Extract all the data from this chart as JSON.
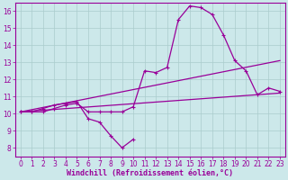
{
  "background_color": "#cce8ea",
  "grid_color": "#aacccc",
  "line_color": "#990099",
  "xlabel": "Windchill (Refroidissement éolien,°C)",
  "xlim": [
    -0.5,
    23.5
  ],
  "ylim": [
    7.5,
    16.5
  ],
  "yticks": [
    8,
    9,
    10,
    11,
    12,
    13,
    14,
    15,
    16
  ],
  "xticks": [
    0,
    1,
    2,
    3,
    4,
    5,
    6,
    7,
    8,
    9,
    10,
    11,
    12,
    13,
    14,
    15,
    16,
    17,
    18,
    19,
    20,
    21,
    22,
    23
  ],
  "series_zigzag_x": [
    0,
    1,
    2,
    3,
    4,
    5,
    6,
    7,
    8,
    9,
    10
  ],
  "series_zigzag_y": [
    10.1,
    10.1,
    10.3,
    10.5,
    10.6,
    10.7,
    9.7,
    9.5,
    8.7,
    8.0,
    8.5
  ],
  "series_main_x": [
    0,
    1,
    2,
    3,
    4,
    5,
    6,
    7,
    8,
    9,
    10,
    11,
    12,
    13,
    14,
    15,
    16,
    17,
    18,
    19,
    20,
    21,
    22,
    23
  ],
  "series_main_y": [
    10.1,
    10.1,
    10.1,
    10.3,
    10.5,
    10.6,
    10.1,
    10.1,
    10.1,
    10.1,
    10.4,
    12.5,
    12.4,
    12.7,
    15.5,
    16.3,
    16.2,
    15.8,
    14.6,
    13.1,
    12.5,
    11.1,
    11.5,
    11.3
  ],
  "series_line1_x": [
    0,
    23
  ],
  "series_line1_y": [
    10.1,
    11.2
  ],
  "series_line2_x": [
    0,
    23
  ],
  "series_line2_y": [
    10.1,
    13.1
  ],
  "font_size_ticks": 5.5,
  "font_size_xlabel": 6.0,
  "linewidth": 0.9,
  "marker": "+",
  "marker_size": 3.0,
  "marker_lw": 0.8
}
